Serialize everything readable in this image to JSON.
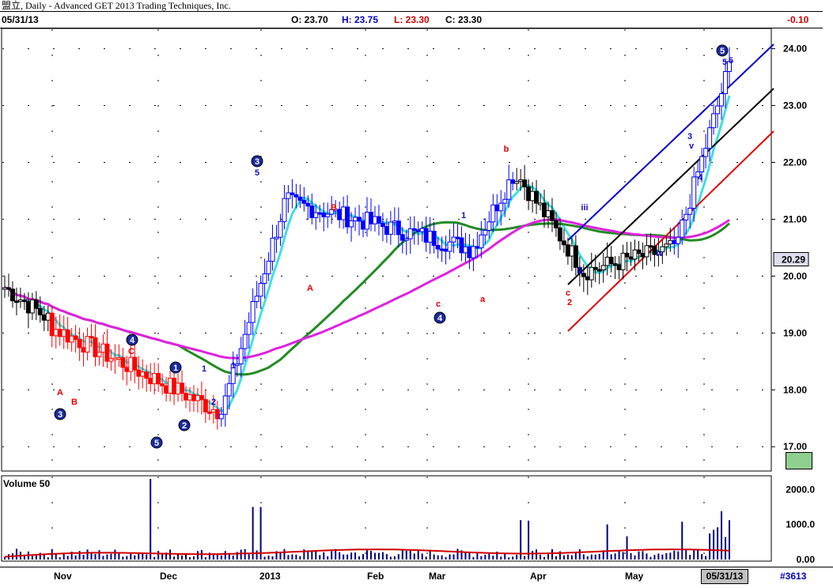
{
  "window": {
    "title": "盟立, Daily - Advanced GET 2013 Trading Techniques, Inc."
  },
  "infobar": {
    "date": "05/31/13",
    "open": "O: 23.70",
    "high": "H: 23.75",
    "low": "L: 23.30",
    "close": "C: 23.30",
    "change": "-0.10"
  },
  "price_axis": {
    "labels": [
      "24.00",
      "23.00",
      "22.00",
      "21.00",
      "20.00",
      "19.00",
      "18.00",
      "17.00"
    ],
    "current_price": "20.29"
  },
  "volume_panel": {
    "title": "Volume 50",
    "labels": [
      "2000.0",
      "1000.0",
      "0.00"
    ]
  },
  "time_axis": {
    "months": [
      "Nov",
      "Dec",
      "2013",
      "Feb",
      "Mar",
      "Apr",
      "May"
    ],
    "current_date": "05/31/13",
    "counter": "#3613"
  },
  "wave_labels": {
    "red": [
      "A",
      "B",
      "C",
      "B",
      "A",
      "a",
      "c",
      "b",
      "c",
      "2"
    ],
    "blue_circled": [
      "3",
      "5",
      "2",
      "1",
      "4",
      "3",
      "4",
      "5"
    ],
    "blue_small": [
      "1",
      "2",
      "1",
      "5",
      "1",
      "2",
      "iii",
      "3",
      "v",
      "4",
      "5",
      "ii",
      "iv",
      "5"
    ]
  },
  "colors": {
    "up_bars": "#0000ff",
    "down_bars_red": "#ff0000",
    "down_bars_black": "#000000",
    "ma_cyan": "#40e0e0",
    "ma_green": "#228b22",
    "ma_magenta": "#e020e0",
    "channel_blue": "#0000cc",
    "channel_black": "#000000",
    "channel_red": "#e00000",
    "volume_bars": "#000080",
    "volume_ma": "#d00000"
  },
  "chart_data": {
    "type": "bar",
    "price_range": [
      16.6,
      24.3
    ],
    "volume_range": [
      0,
      2300
    ],
    "grid": true,
    "segments": [
      {
        "from": 0,
        "to": 12,
        "color": "black",
        "start": 19.8,
        "end": 19.2
      },
      {
        "from": 12,
        "to": 55,
        "color": "red",
        "start": 19.1,
        "end": 17.6
      },
      {
        "from": 55,
        "to": 72,
        "color": "blue",
        "start": 17.6,
        "end": 21.5
      },
      {
        "from": 72,
        "to": 118,
        "color": "blue",
        "start": 21.3,
        "end": 20.5
      },
      {
        "from": 118,
        "to": 130,
        "color": "blue",
        "start": 20.4,
        "end": 21.9
      },
      {
        "from": 130,
        "to": 148,
        "color": "black",
        "start": 21.8,
        "end": 20.0
      },
      {
        "from": 148,
        "to": 170,
        "color": "black",
        "start": 20.1,
        "end": 20.5
      },
      {
        "from": 170,
        "to": 184,
        "color": "blue",
        "start": 20.4,
        "end": 23.7
      }
    ]
  }
}
